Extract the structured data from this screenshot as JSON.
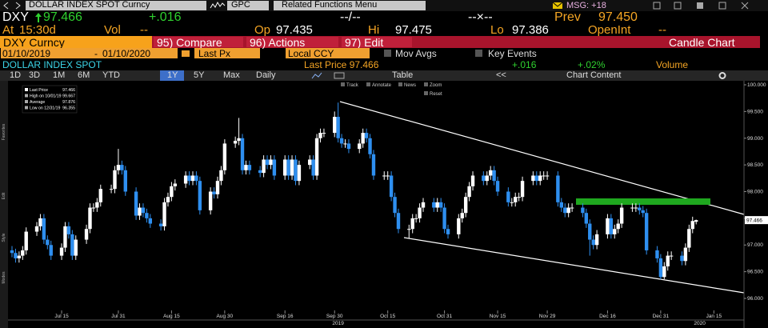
{
  "header": {
    "security": "DOLLAR INDEX SPOT Curncy",
    "gpc": "GPC",
    "related": "Related Functions Menu",
    "msg": "MSG: +18"
  },
  "quote": {
    "ticker": "DXY",
    "last": "97.466",
    "change": "+.016",
    "bid_ask": "--/--",
    "size": "--×--",
    "prev_label": "Prev",
    "prev": "97.450"
  },
  "stats": {
    "at_label": "At",
    "time": "15:30d",
    "vol_label": "Vol",
    "vol": "--",
    "op_label": "Op",
    "op": "97.435",
    "hi_label": "Hi",
    "hi": "97.475",
    "lo_label": "Lo",
    "lo": "97.386",
    "oi_label": "OpenInt",
    "oi": "--"
  },
  "menu": {
    "security": "DXY Curncy",
    "compare": "95) Compare",
    "actions": "96) Actions",
    "edit": "97) Edit",
    "function": "Candle Chart"
  },
  "settings": {
    "start": "01/10/2019",
    "dash": "-",
    "end": "01/10/2020",
    "field": "Last Px",
    "currency": "Local CCY",
    "mov_avgs": "Mov Avgs",
    "key_events": "Key Events"
  },
  "info": {
    "name": "DOLLAR INDEX SPOT",
    "last": "Last Price 97.466",
    "change": "+.016",
    "pct": "+.02%",
    "volume": "Volume"
  },
  "periods": {
    "buttons": [
      "1D",
      "3D",
      "1M",
      "6M",
      "YTD",
      "1Y",
      "5Y",
      "Max"
    ],
    "selected": 5,
    "frequency": "Daily",
    "table": "Table",
    "back": "<<",
    "content": "Chart Content"
  },
  "tools": {
    "track": "Track",
    "annotate": "Annotate",
    "news": "News",
    "zoom": "Zoom",
    "reset": "Reset"
  },
  "sidebar": [
    "Favorites",
    "Edit",
    "Style",
    "Modes"
  ],
  "chart_data": {
    "type": "candlestick",
    "legend": {
      "last_label": "Last Price",
      "last": "97.466",
      "high_label": "High on 10/01/19",
      "high": "99.667",
      "avg_label": "Average",
      "avg": "97.876",
      "low_label": "Low on 12/31/19",
      "low": "96.355"
    },
    "up_color": "#ffffff",
    "down_color": "#2e8ff0",
    "x": [
      0,
      1,
      2,
      3,
      4,
      7,
      8,
      9,
      10,
      11,
      14,
      15,
      16,
      17,
      18,
      21,
      22,
      23,
      24,
      25,
      28,
      29,
      30,
      31,
      32,
      35,
      36,
      37,
      38,
      39,
      42,
      43,
      44,
      45,
      46,
      49,
      50,
      51,
      52,
      53,
      56,
      57,
      58,
      59,
      60,
      63,
      64,
      65,
      66,
      67,
      70,
      71,
      72,
      73,
      74,
      77,
      78,
      79,
      80,
      81,
      84,
      85,
      86,
      87,
      88,
      91,
      92,
      93,
      94,
      95,
      98,
      99,
      100,
      101,
      102,
      105,
      106,
      107,
      108,
      109,
      112,
      113,
      114,
      115,
      116,
      119,
      120,
      121,
      122,
      123,
      126,
      127,
      128,
      129,
      130,
      133,
      134,
      135,
      136,
      137,
      140,
      141,
      142,
      143,
      144,
      147,
      148,
      149,
      150,
      151,
      154,
      155,
      156,
      157,
      158,
      161,
      162,
      163,
      164,
      165,
      168,
      169,
      170,
      171,
      172,
      175,
      176,
      177,
      178,
      179,
      182,
      183,
      184,
      185,
      186,
      189,
      190,
      191,
      192,
      193
    ],
    "open": [
      96.9,
      96.85,
      96.75,
      96.8,
      96.9,
      97.25,
      97.35,
      97.5,
      97.1,
      97.0,
      96.8,
      96.95,
      97.35,
      97.2,
      96.8,
      97.1,
      97.3,
      97.7,
      97.7,
      97.8,
      98.05,
      98.05,
      98.4,
      98.5,
      98.4,
      98.0,
      97.55,
      97.7,
      97.6,
      97.5,
      97.4,
      97.35,
      97.8,
      97.9,
      98.1,
      98.15,
      98.3,
      98.2,
      98.3,
      98.2,
      97.65,
      98.0,
      97.95,
      98.2,
      98.4,
      98.9,
      98.95,
      99.0,
      98.4,
      98.5,
      98.4,
      98.35,
      98.6,
      98.5,
      98.6,
      98.3,
      98.6,
      98.3,
      98.6,
      98.2,
      98.5,
      98.6,
      98.3,
      99.0,
      99.1,
      99.1,
      99.4,
      99.0,
      98.9,
      98.9,
      98.8,
      98.9,
      99.1,
      99.0,
      98.7,
      98.3,
      98.3,
      98.3,
      97.9,
      97.6,
      97.3,
      97.3,
      97.5,
      97.5,
      97.7,
      97.8,
      97.7,
      97.8,
      97.7,
      97.3,
      97.2,
      97.5,
      97.6,
      97.9,
      98.1,
      98.3,
      98.2,
      98.3,
      98.4,
      98.2,
      98.0,
      97.8,
      97.8,
      97.9,
      97.9,
      98.2,
      98.3,
      98.2,
      98.3,
      98.3,
      98.3,
      97.8,
      97.7,
      97.6,
      97.7,
      97.7,
      97.6,
      97.4,
      97.1,
      97.0,
      97.2,
      97.5,
      97.2,
      97.3,
      97.4,
      97.7,
      97.7,
      97.7,
      97.65,
      97.6,
      96.9,
      96.75,
      96.4,
      96.6,
      96.8,
      96.8,
      96.7,
      96.95,
      97.3,
      97.435
    ],
    "high": [
      96.98,
      96.93,
      96.88,
      96.98,
      97.33,
      97.43,
      97.58,
      97.58,
      97.18,
      97.08,
      97.03,
      97.43,
      97.43,
      97.28,
      97.18,
      97.38,
      97.78,
      97.78,
      97.88,
      98.13,
      98.13,
      98.48,
      98.8,
      98.58,
      98.48,
      98.08,
      97.78,
      97.78,
      97.68,
      97.58,
      97.48,
      97.88,
      97.98,
      98.18,
      98.23,
      98.38,
      98.38,
      98.38,
      98.38,
      98.28,
      98.08,
      98.08,
      98.28,
      98.48,
      98.98,
      99.03,
      99.38,
      99.08,
      98.58,
      98.58,
      98.48,
      98.68,
      98.68,
      98.68,
      98.68,
      98.68,
      98.68,
      98.68,
      98.68,
      98.58,
      98.68,
      98.68,
      99.08,
      99.18,
      99.18,
      99.5,
      99.667,
      99.08,
      98.98,
      98.98,
      98.98,
      99.18,
      99.18,
      99.08,
      98.78,
      98.38,
      98.38,
      98.38,
      97.98,
      97.68,
      97.38,
      97.58,
      97.58,
      97.78,
      97.88,
      97.88,
      97.88,
      97.88,
      97.78,
      97.38,
      97.58,
      97.68,
      97.98,
      98.18,
      98.38,
      98.38,
      98.38,
      98.48,
      98.48,
      98.28,
      98.08,
      97.88,
      97.98,
      97.98,
      98.28,
      98.38,
      98.38,
      98.38,
      98.38,
      98.38,
      98.38,
      97.88,
      97.78,
      97.78,
      97.78,
      97.78,
      97.68,
      97.48,
      97.18,
      97.28,
      97.58,
      97.58,
      97.38,
      97.48,
      97.78,
      97.78,
      97.78,
      97.78,
      97.73,
      97.68,
      96.98,
      96.83,
      96.68,
      96.88,
      96.88,
      96.88,
      97.03,
      97.38,
      97.53,
      97.475
    ],
    "low": [
      96.77,
      96.67,
      96.67,
      96.72,
      96.82,
      97.17,
      97.27,
      97.02,
      96.92,
      96.72,
      96.72,
      96.87,
      97.12,
      96.72,
      96.72,
      97.02,
      97.22,
      97.62,
      97.62,
      97.72,
      97.97,
      97.97,
      98.32,
      98.32,
      97.92,
      97.47,
      97.47,
      97.52,
      97.42,
      97.32,
      97.27,
      97.27,
      97.72,
      97.82,
      98.02,
      98.07,
      98.12,
      98.12,
      98.12,
      97.57,
      97.57,
      97.87,
      97.87,
      98.12,
      98.32,
      98.82,
      98.87,
      98.32,
      98.32,
      98.32,
      98.27,
      98.27,
      98.42,
      98.42,
      98.22,
      98.22,
      98.22,
      98.22,
      98.12,
      98.12,
      98.42,
      98.22,
      98.22,
      98.92,
      99.02,
      99.02,
      98.92,
      98.82,
      98.82,
      98.72,
      98.72,
      98.82,
      98.92,
      98.62,
      98.22,
      98.22,
      98.22,
      97.82,
      97.52,
      97.22,
      97.12,
      97.22,
      97.42,
      97.42,
      97.62,
      97.62,
      97.62,
      97.62,
      97.22,
      97.12,
      97.12,
      97.42,
      97.52,
      97.82,
      98.02,
      98.12,
      98.12,
      98.22,
      98.12,
      97.92,
      97.72,
      97.72,
      97.72,
      97.82,
      97.82,
      98.12,
      98.12,
      98.12,
      98.22,
      98.22,
      97.72,
      97.62,
      97.52,
      97.52,
      97.62,
      97.52,
      97.32,
      96.8,
      96.92,
      96.92,
      97.12,
      97.12,
      97.12,
      97.22,
      97.32,
      97.62,
      97.62,
      97.57,
      97.52,
      96.82,
      96.67,
      96.355,
      96.36,
      96.52,
      96.72,
      96.62,
      96.62,
      96.87,
      97.22,
      97.386
    ],
    "close": [
      96.85,
      96.75,
      96.8,
      96.9,
      97.25,
      97.35,
      97.5,
      97.1,
      97.0,
      96.8,
      96.95,
      97.35,
      97.2,
      96.8,
      97.1,
      97.3,
      97.7,
      97.7,
      97.8,
      98.05,
      98.05,
      98.4,
      98.5,
      98.4,
      98.0,
      97.55,
      97.7,
      97.6,
      97.5,
      97.4,
      97.35,
      97.8,
      97.9,
      98.1,
      98.15,
      98.3,
      98.2,
      98.3,
      98.2,
      97.65,
      98.0,
      97.95,
      98.2,
      98.4,
      98.9,
      98.95,
      99.0,
      98.4,
      98.5,
      98.4,
      98.35,
      98.6,
      98.5,
      98.6,
      98.3,
      98.6,
      98.3,
      98.6,
      98.2,
      98.5,
      98.6,
      98.3,
      99.0,
      99.1,
      99.1,
      99.4,
      99.0,
      98.9,
      98.9,
      98.8,
      98.9,
      99.1,
      99.0,
      98.7,
      98.3,
      98.3,
      98.3,
      97.9,
      97.6,
      97.3,
      97.3,
      97.5,
      97.5,
      97.7,
      97.8,
      97.7,
      97.8,
      97.7,
      97.3,
      97.2,
      97.5,
      97.6,
      97.9,
      98.1,
      98.3,
      98.2,
      98.3,
      98.4,
      98.2,
      98.0,
      97.8,
      97.8,
      97.9,
      97.9,
      98.2,
      98.3,
      98.2,
      98.3,
      98.3,
      98.3,
      97.8,
      97.7,
      97.6,
      97.7,
      97.7,
      97.6,
      97.4,
      97.1,
      97.0,
      97.2,
      97.5,
      97.2,
      97.3,
      97.4,
      97.7,
      97.7,
      97.7,
      97.65,
      97.6,
      96.9,
      96.75,
      96.4,
      96.6,
      96.8,
      96.8,
      96.7,
      96.95,
      97.3,
      97.45,
      97.466
    ],
    "xlim": [
      -1.13,
      206.5
    ],
    "xticks": [
      {
        "value": 14,
        "label": "Jul 15"
      },
      {
        "value": 30,
        "label": "Jul 31"
      },
      {
        "value": 45,
        "label": "Aug 15"
      },
      {
        "value": 60,
        "label": "Aug 30"
      },
      {
        "value": 77,
        "label": "Sep 16"
      },
      {
        "value": 91,
        "label": "Sep 30"
      },
      {
        "value": 106,
        "label": "Oct 15"
      },
      {
        "value": 122,
        "label": "Oct 31"
      },
      {
        "value": 137,
        "label": "Nov 15"
      },
      {
        "value": 151,
        "label": "Nov 29"
      },
      {
        "value": 168,
        "label": "Dec 16"
      },
      {
        "value": 183,
        "label": "Dec 31"
      },
      {
        "value": 198,
        "label": "Jan 15"
      }
    ],
    "year_ticks": [
      {
        "value": 92,
        "label": "2019"
      },
      {
        "value": 194,
        "label": "2020"
      }
    ],
    "ylim": [
      95.775,
      100.075
    ],
    "yticks": [
      {
        "value": 100,
        "label": "100.000"
      },
      {
        "value": 99.5,
        "label": "99.500"
      },
      {
        "value": 99,
        "label": "99.000"
      },
      {
        "value": 98.5,
        "label": "98.500"
      },
      {
        "value": 98,
        "label": "98.000"
      },
      {
        "value": 97.5,
        "label": "97.500"
      },
      {
        "value": 97,
        "label": "97.000"
      },
      {
        "value": 96.5,
        "label": "96.500"
      },
      {
        "value": 96,
        "label": "96.000"
      }
    ],
    "price_marker": {
      "value": 97.466,
      "label": "97.466"
    },
    "grid": false
  }
}
